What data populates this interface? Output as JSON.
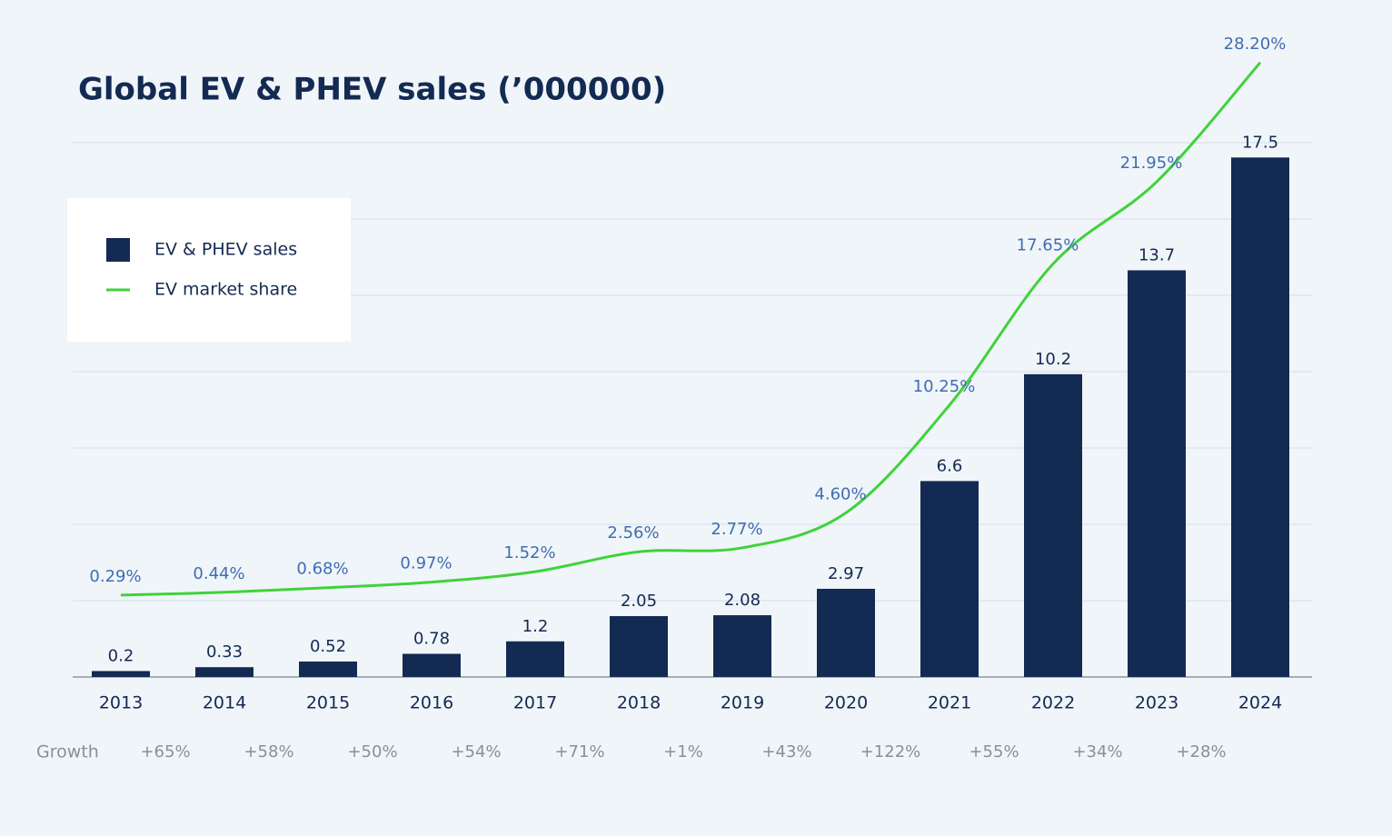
{
  "chart_data": {
    "type": "bar-line",
    "title": "Global EV & PHEV sales (’000000)",
    "categories": [
      "2013",
      "2014",
      "2015",
      "2016",
      "2017",
      "2018",
      "2019",
      "2020",
      "2021",
      "2022",
      "2023",
      "2024"
    ],
    "series": [
      {
        "name": "EV & PHEV sales",
        "type": "bar",
        "color": "#132a52",
        "values": [
          0.2,
          0.33,
          0.52,
          0.78,
          1.2,
          2.05,
          2.08,
          2.97,
          6.6,
          10.2,
          13.7,
          17.5
        ]
      },
      {
        "name": "EV market share",
        "type": "line",
        "axis": "y2",
        "color": "#3fd33a",
        "values": [
          0.29,
          0.44,
          0.68,
          0.97,
          1.52,
          2.56,
          2.77,
          4.6,
          10.25,
          17.65,
          21.95,
          28.2
        ],
        "value_labels": [
          "0.29%",
          "0.44%",
          "0.68%",
          "0.97%",
          "1.52%",
          "2.56%",
          "2.77%",
          "4.60%",
          "10.25%",
          "17.65%",
          "21.95%",
          "28.20%"
        ]
      }
    ],
    "ylim": [
      0,
      18
    ],
    "y2lim": [
      -4,
      24
    ],
    "grid": true,
    "legend": "upper left",
    "growth_label": "Growth",
    "growth": [
      "+65%",
      "+58%",
      "+50%",
      "+54%",
      "+71%",
      "+1%",
      "+43%",
      "+122%",
      "+55%",
      "+34%",
      "+28%"
    ]
  }
}
